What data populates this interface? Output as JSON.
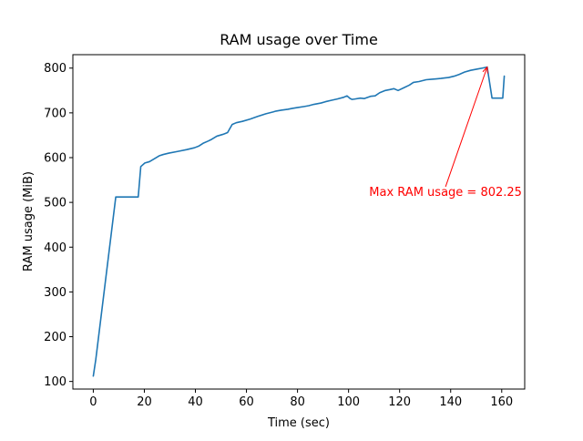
{
  "chart_data": {
    "type": "line",
    "title": "RAM usage over Time",
    "xlabel": "Time (sec)",
    "ylabel": "RAM usage (MiB)",
    "xlim": [
      -8,
      169
    ],
    "ylim": [
      83,
      830
    ],
    "xticks": [
      0,
      20,
      40,
      60,
      80,
      100,
      120,
      140,
      160
    ],
    "xtick_labels": [
      "0",
      "20",
      "40",
      "60",
      "80",
      "100",
      "120",
      "140",
      "160"
    ],
    "yticks": [
      100,
      200,
      300,
      400,
      500,
      600,
      700,
      800
    ],
    "ytick_labels": [
      "100",
      "200",
      "300",
      "400",
      "500",
      "600",
      "700",
      "800"
    ],
    "grid": false,
    "series_color": "#1f77b4",
    "annotation_color": "#ff0000",
    "series": [
      {
        "x": [
          0,
          1,
          8.8,
          17.6,
          18.6,
          20.2,
          22,
          23.8,
          25.8,
          27.4,
          29.6,
          33.2,
          36.6,
          39.6,
          41.4,
          43,
          45,
          46.4,
          48.4,
          50.8,
          52.6,
          54.4,
          56,
          58.4,
          61.4,
          64.4,
          67.6,
          70.4,
          71.6,
          73.6,
          76.2,
          78,
          80.2,
          82.4,
          84.4,
          86.4,
          89.2,
          91,
          93.2,
          95.6,
          98.2,
          99.4,
          100.6,
          101.4,
          102.6,
          104.6,
          106.2,
          108.6,
          110.4,
          112.2,
          114.4,
          116.2,
          117.8,
          119.4,
          121.6,
          123.8,
          125.4,
          127.6,
          130.4,
          132.2,
          134.4,
          136.2,
          137.6,
          139.2,
          141.4,
          143.4,
          145.4,
          147.8,
          150.6,
          152.4,
          154.3,
          156.2,
          160.4,
          161
        ]
      }
    ],
    "values": [
      112,
      150,
      512,
      512,
      580,
      588,
      591,
      597,
      604,
      607,
      610,
      614,
      618,
      622,
      626,
      632,
      637,
      641,
      648,
      652,
      656,
      674,
      678,
      681,
      686,
      692,
      698,
      702,
      704,
      706,
      708,
      710,
      712,
      714,
      716,
      719,
      722,
      725,
      728,
      731,
      735,
      738,
      732,
      730,
      731,
      733,
      732,
      737,
      738,
      745,
      750,
      752,
      754,
      750,
      756,
      762,
      768,
      770,
      774,
      775,
      776,
      777,
      778,
      779,
      782,
      786,
      791,
      795,
      798,
      800,
      802.25,
      733,
      733,
      782
    ],
    "annotation": {
      "text": "Max RAM usage = 802.25",
      "point": [
        154.3,
        802.25
      ],
      "text_anchor_point": [
        138,
        535
      ]
    }
  }
}
